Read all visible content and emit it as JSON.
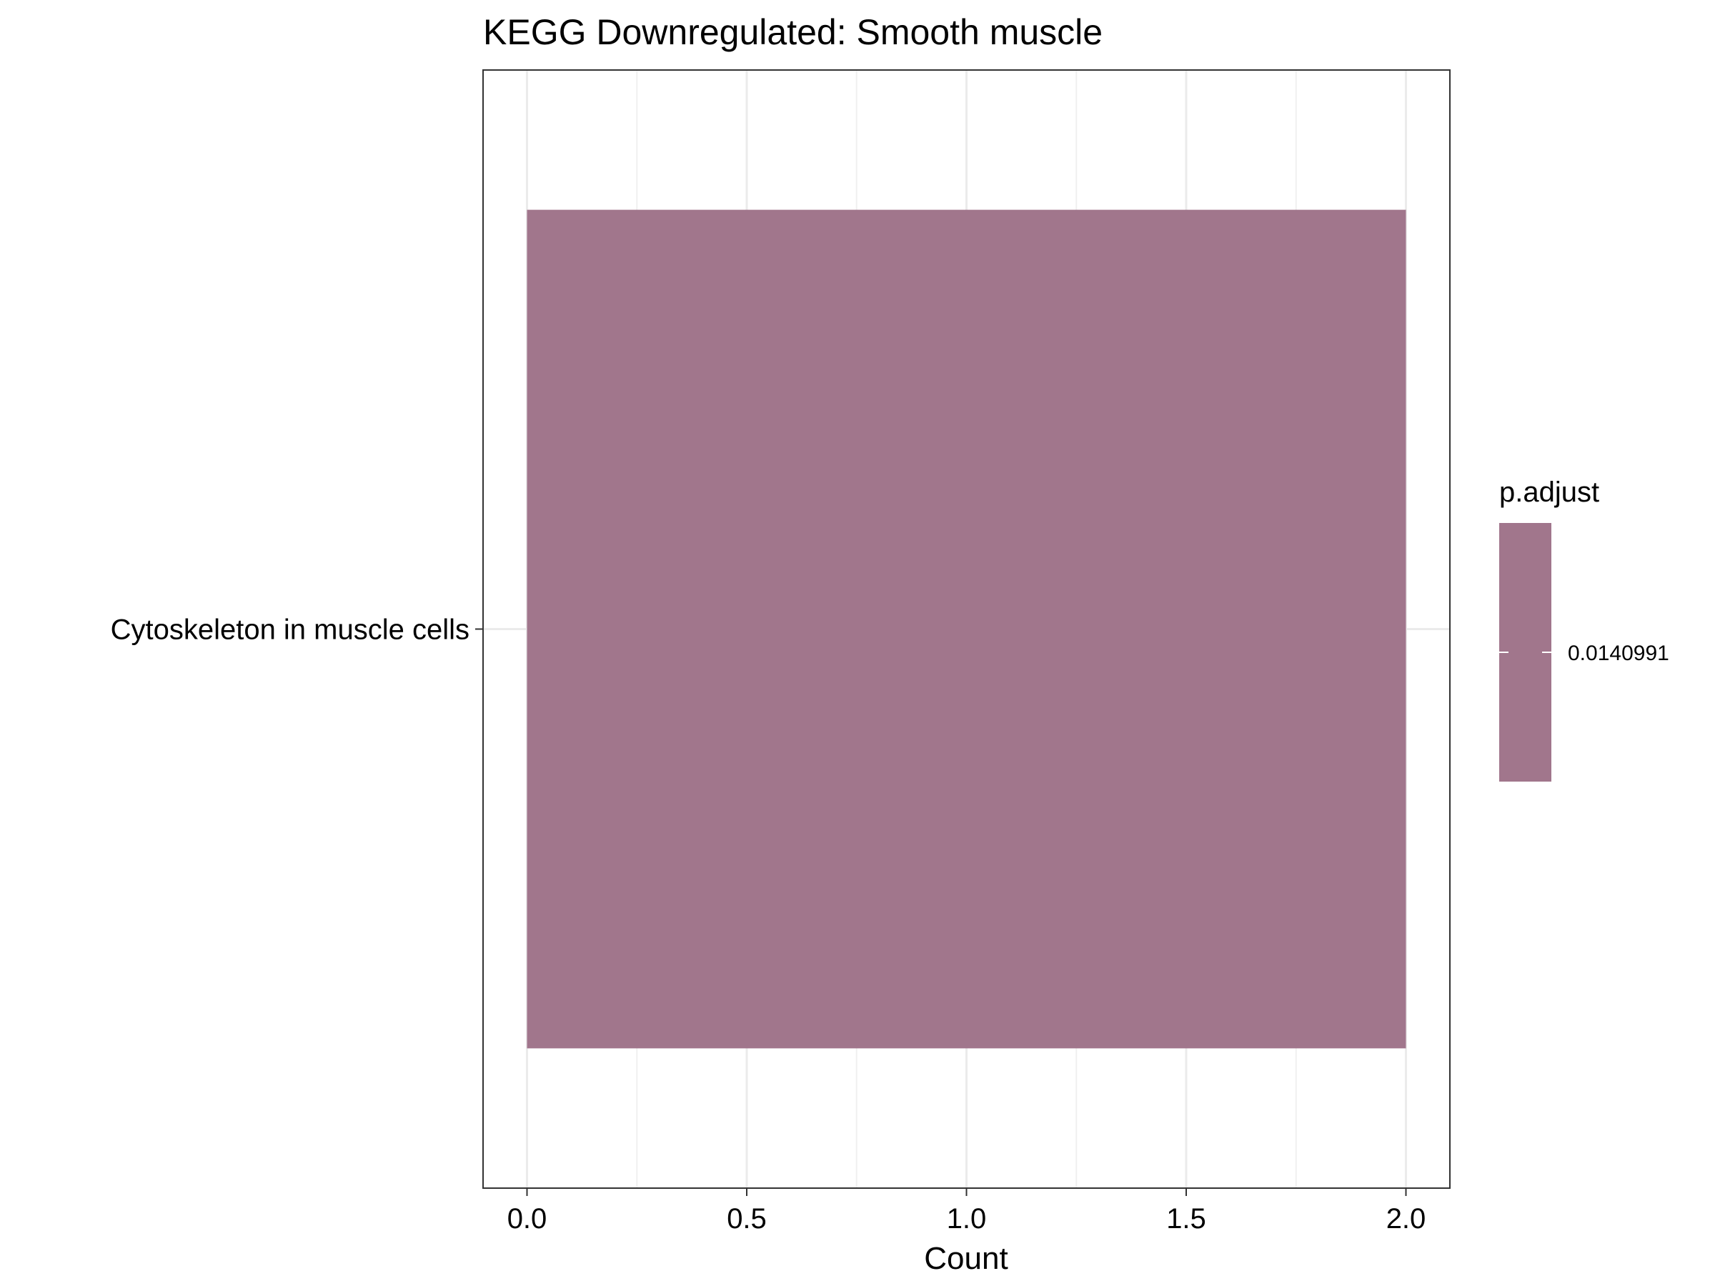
{
  "chart_data": {
    "type": "bar",
    "orientation": "horizontal",
    "title": "KEGG Downregulated: Smooth muscle",
    "xlabel": "Count",
    "ylabel": "",
    "categories": [
      "Cytoskeleton in muscle cells"
    ],
    "values": [
      2
    ],
    "xlim": [
      -0.1,
      2.1
    ],
    "x_ticks": [
      "0.0",
      "0.5",
      "1.0",
      "1.5",
      "2.0"
    ],
    "x_tick_values": [
      0,
      0.5,
      1,
      1.5,
      2
    ],
    "grid": true,
    "bar_color": "#a1768c",
    "legend": {
      "title": "p.adjust",
      "position": "right",
      "labels": [
        "0.0140991"
      ],
      "values": [
        0.0140991
      ],
      "color": "#a1768c"
    }
  }
}
